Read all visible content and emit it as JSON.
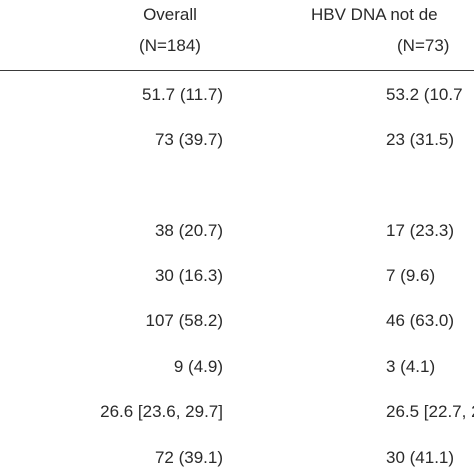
{
  "header": {
    "col1_title": "Overall",
    "col1_n": "(N=184)",
    "col2_title": "HBV DNA not de",
    "col2_n": "(N=73)"
  },
  "rows": [
    {
      "overall": "51.7 (11.7)",
      "not_detected": "53.2 (10.7"
    },
    {
      "overall": "73 (39.7)",
      "not_detected": "23 (31.5)"
    },
    {
      "overall": "38 (20.7)",
      "not_detected": "17 (23.3)"
    },
    {
      "overall": "30 (16.3)",
      "not_detected": "7 (9.6)"
    },
    {
      "overall": "107 (58.2)",
      "not_detected": "46 (63.0)"
    },
    {
      "overall": "9 (4.9)",
      "not_detected": "3 (4.1)"
    },
    {
      "overall": "26.6 [23.6, 29.7]",
      "not_detected": "26.5 [22.7, 2"
    },
    {
      "overall": "72 (39.1)",
      "not_detected": "30 (41.1)"
    }
  ]
}
